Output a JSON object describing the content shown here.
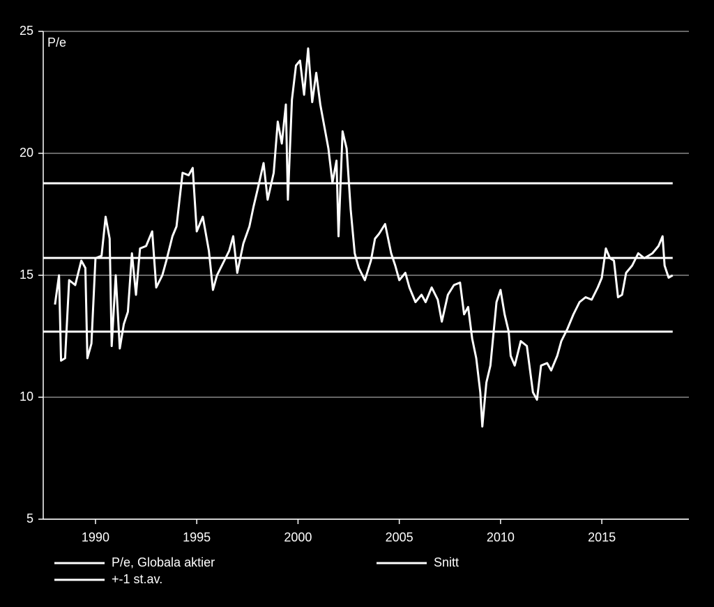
{
  "chart_data": {
    "type": "line",
    "ylabel": "P/e",
    "xlim": [
      1987.42,
      2019.3
    ],
    "ylim": [
      5,
      25
    ],
    "xticks": [
      1990,
      1995,
      2000,
      2005,
      2010,
      2015
    ],
    "yticks": [
      5,
      10,
      15,
      20,
      25
    ],
    "grid": true,
    "series": [
      {
        "name": "P/e, Globala aktier",
        "color": "#ffffff",
        "x": [
          1988.0,
          1988.2,
          1988.3,
          1988.5,
          1988.7,
          1989.0,
          1989.3,
          1989.5,
          1989.6,
          1989.8,
          1990.0,
          1990.3,
          1990.5,
          1990.7,
          1990.8,
          1991.0,
          1991.2,
          1991.4,
          1991.6,
          1991.8,
          1992.0,
          1992.2,
          1992.5,
          1992.8,
          1993.0,
          1993.3,
          1993.5,
          1993.8,
          1994.0,
          1994.3,
          1994.6,
          1994.8,
          1995.0,
          1995.3,
          1995.6,
          1995.8,
          1996.0,
          1996.3,
          1996.6,
          1996.8,
          1997.0,
          1997.3,
          1997.6,
          1997.8,
          1998.0,
          1998.3,
          1998.5,
          1998.8,
          1999.0,
          1999.2,
          1999.4,
          1999.5,
          1999.7,
          1999.9,
          2000.1,
          2000.3,
          2000.5,
          2000.7,
          2000.9,
          2001.1,
          2001.3,
          2001.5,
          2001.7,
          2001.9,
          2002.0,
          2002.2,
          2002.4,
          2002.6,
          2002.8,
          2003.0,
          2003.3,
          2003.6,
          2003.8,
          2004.0,
          2004.3,
          2004.6,
          2004.8,
          2005.0,
          2005.3,
          2005.5,
          2005.8,
          2006.1,
          2006.3,
          2006.6,
          2006.9,
          2007.1,
          2007.4,
          2007.7,
          2008.0,
          2008.2,
          2008.4,
          2008.6,
          2008.8,
          2009.0,
          2009.1,
          2009.3,
          2009.5,
          2009.8,
          2010.0,
          2010.2,
          2010.4,
          2010.5,
          2010.7,
          2011.0,
          2011.3,
          2011.6,
          2011.8,
          2012.0,
          2012.3,
          2012.5,
          2012.8,
          2013.0,
          2013.3,
          2013.6,
          2013.9,
          2014.2,
          2014.5,
          2014.8,
          2015.0,
          2015.2,
          2015.4,
          2015.6,
          2015.8,
          2016.0,
          2016.2,
          2016.5,
          2016.8,
          2017.1,
          2017.5,
          2017.8,
          2018.0,
          2018.1,
          2018.3,
          2018.5
        ],
        "values": [
          13.8,
          15.0,
          11.5,
          11.6,
          14.8,
          14.6,
          15.6,
          15.3,
          11.6,
          12.2,
          15.7,
          15.8,
          17.4,
          16.5,
          12.1,
          15.0,
          12.0,
          13.0,
          13.5,
          15.9,
          14.2,
          16.1,
          16.2,
          16.8,
          14.5,
          15.0,
          15.6,
          16.6,
          17.0,
          19.2,
          19.1,
          19.4,
          16.8,
          17.4,
          16.0,
          14.4,
          15.0,
          15.5,
          16.0,
          16.6,
          15.1,
          16.3,
          17.0,
          17.8,
          18.5,
          19.6,
          18.1,
          19.2,
          21.3,
          20.4,
          22.0,
          18.1,
          22.2,
          23.6,
          23.8,
          22.4,
          24.3,
          22.1,
          23.3,
          22.0,
          21.1,
          20.2,
          18.8,
          19.7,
          16.6,
          20.9,
          20.2,
          17.7,
          15.9,
          15.3,
          14.8,
          15.6,
          16.5,
          16.7,
          17.1,
          15.9,
          15.4,
          14.8,
          15.1,
          14.5,
          13.9,
          14.2,
          13.9,
          14.5,
          14.0,
          13.1,
          14.2,
          14.6,
          14.7,
          13.4,
          13.7,
          12.4,
          11.6,
          10.2,
          8.8,
          10.6,
          11.3,
          13.9,
          14.4,
          13.4,
          12.7,
          11.7,
          11.3,
          12.3,
          12.1,
          10.2,
          9.9,
          11.3,
          11.4,
          11.1,
          11.7,
          12.3,
          12.8,
          13.4,
          13.9,
          14.1,
          14.0,
          14.5,
          14.9,
          16.1,
          15.7,
          15.6,
          14.1,
          14.2,
          15.1,
          15.4,
          15.9,
          15.7,
          15.9,
          16.2,
          16.6,
          15.4,
          14.9,
          15.0
        ]
      }
    ],
    "hlines": [
      {
        "name": "Snitt",
        "color": "#ffffff",
        "values": [
          15.71
        ]
      },
      {
        "name": "+-1 st.av.",
        "color": "#ffffff",
        "values": [
          12.69,
          18.77
        ]
      }
    ]
  }
}
